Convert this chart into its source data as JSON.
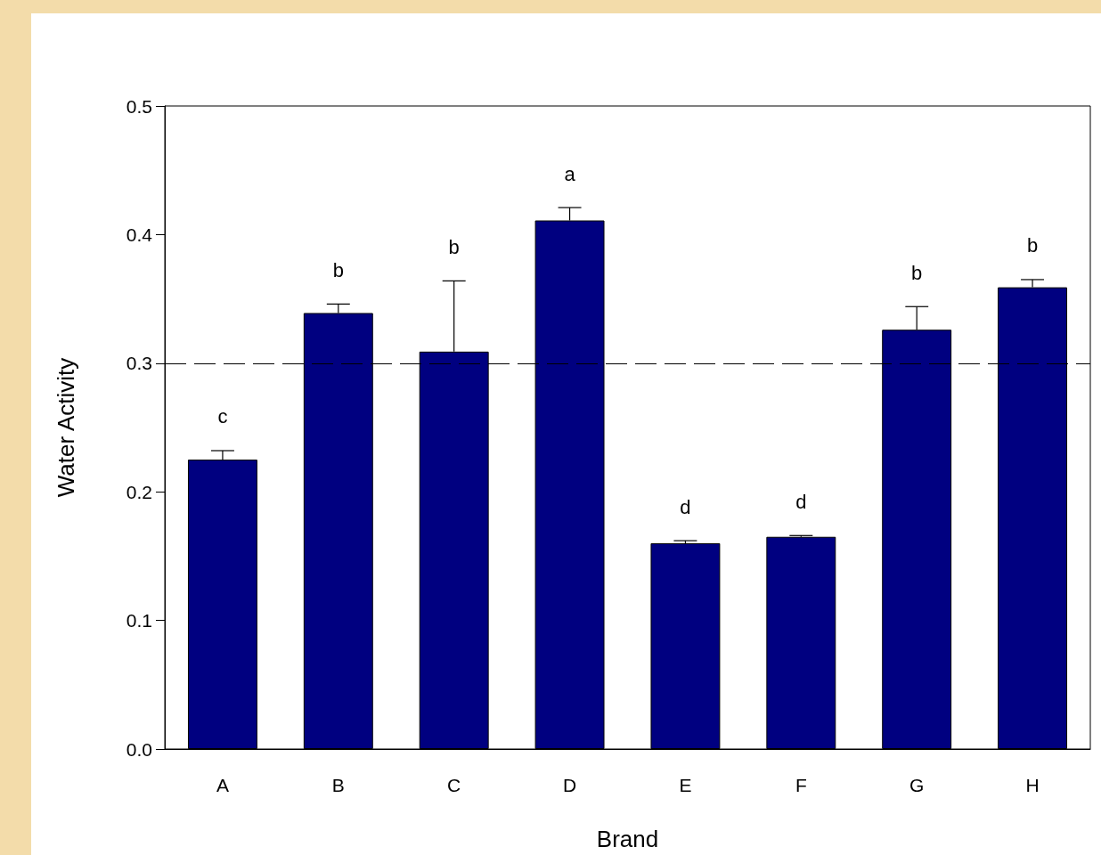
{
  "chart_data": {
    "type": "bar",
    "xlabel": "Brand",
    "ylabel": "Water Activity",
    "categories": [
      "A",
      "B",
      "C",
      "D",
      "E",
      "F",
      "G",
      "H"
    ],
    "values": [
      0.225,
      0.339,
      0.309,
      0.411,
      0.16,
      0.165,
      0.326,
      0.359
    ],
    "errors": [
      [
        0.225,
        0.232
      ],
      [
        0.339,
        0.346
      ],
      [
        0.309,
        0.364
      ],
      [
        0.411,
        0.421
      ],
      [
        0.16,
        0.162
      ],
      [
        0.165,
        0.166
      ],
      [
        0.326,
        0.344
      ],
      [
        0.359,
        0.365
      ]
    ],
    "color": "#000080",
    "ylim": [
      0,
      0.5
    ],
    "yticks": [
      {
        "value": 0,
        "label": "0.0"
      },
      0.1,
      0.2,
      0.3,
      0.4,
      0.5
    ],
    "ref_lines": [
      {
        "axis": "y",
        "value": 0.3,
        "line_style": "dashed",
        "color": "#000000"
      }
    ],
    "annotations": [
      "c",
      "b",
      "b",
      "a",
      "d",
      "d",
      "b",
      "b"
    ],
    "grid": false
  }
}
